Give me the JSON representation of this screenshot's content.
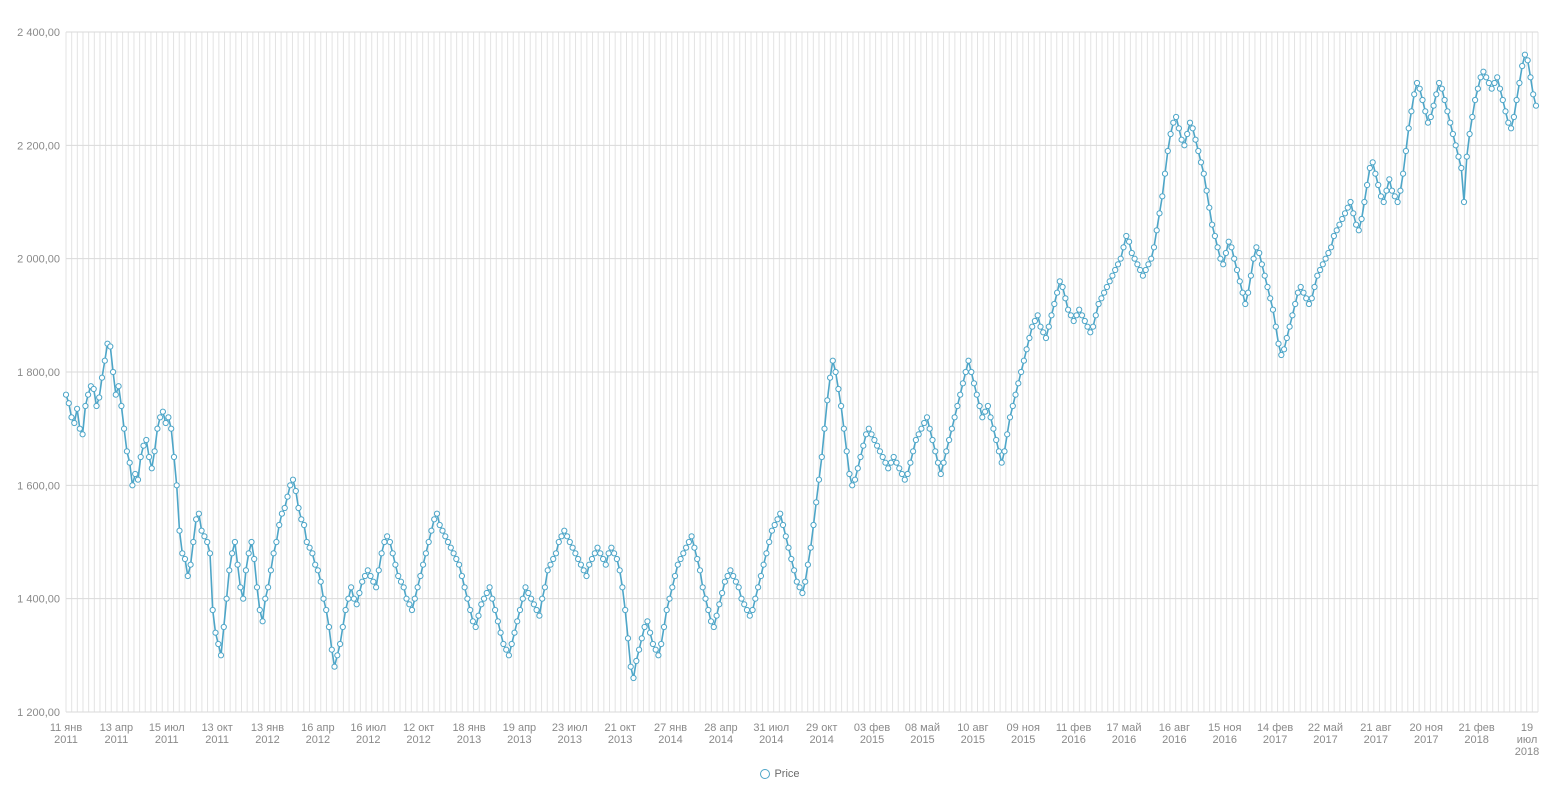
{
  "chart_data": {
    "type": "line",
    "title": "",
    "xlabel": "",
    "ylabel": "",
    "ylim": [
      1200,
      2400
    ],
    "y_ticks": [
      "1 200,00",
      "1 400,00",
      "1 600,00",
      "1 800,00",
      "2 000,00",
      "2 200,00",
      "2 400,00"
    ],
    "y_tick_values": [
      1200,
      1400,
      1600,
      1800,
      2000,
      2200,
      2400
    ],
    "x_tick_labels": [
      [
        "11 янв",
        "2011"
      ],
      [
        "13 апр",
        "2011"
      ],
      [
        "15 июл",
        "2011"
      ],
      [
        "13 окт",
        "2011"
      ],
      [
        "13 янв",
        "2012"
      ],
      [
        "16 апр",
        "2012"
      ],
      [
        "16 июл",
        "2012"
      ],
      [
        "12 окт",
        "2012"
      ],
      [
        "18 янв",
        "2013"
      ],
      [
        "19 апр",
        "2013"
      ],
      [
        "23 июл",
        "2013"
      ],
      [
        "21 окт",
        "2013"
      ],
      [
        "27 янв",
        "2014"
      ],
      [
        "28 апр",
        "2014"
      ],
      [
        "31 июл",
        "2014"
      ],
      [
        "29 окт",
        "2014"
      ],
      [
        "03 фев",
        "2015"
      ],
      [
        "08 май",
        "2015"
      ],
      [
        "10 авг",
        "2015"
      ],
      [
        "09 ноя",
        "2015"
      ],
      [
        "11 фев",
        "2016"
      ],
      [
        "17 май",
        "2016"
      ],
      [
        "16 авг",
        "2016"
      ],
      [
        "15 ноя",
        "2016"
      ],
      [
        "14 фев",
        "2017"
      ],
      [
        "22 май",
        "2017"
      ],
      [
        "21 авг",
        "2017"
      ],
      [
        "20 ноя",
        "2017"
      ],
      [
        "21 фев",
        "2018"
      ],
      [
        "19",
        "июл",
        "2018"
      ]
    ],
    "grid": true,
    "legend_position": "bottom-center",
    "colors": {
      "series": "#4ea6c8",
      "grid": "#e3e3e3",
      "axis_text": "#8a8a8a"
    },
    "series": [
      {
        "name": "Price",
        "values": [
          1760,
          1745,
          1720,
          1710,
          1735,
          1700,
          1690,
          1740,
          1760,
          1775,
          1770,
          1740,
          1755,
          1790,
          1820,
          1850,
          1845,
          1800,
          1760,
          1775,
          1740,
          1700,
          1660,
          1640,
          1600,
          1620,
          1610,
          1650,
          1670,
          1680,
          1650,
          1630,
          1660,
          1700,
          1720,
          1730,
          1710,
          1720,
          1700,
          1650,
          1600,
          1520,
          1480,
          1470,
          1440,
          1460,
          1500,
          1540,
          1550,
          1520,
          1510,
          1500,
          1480,
          1380,
          1340,
          1320,
          1300,
          1350,
          1400,
          1450,
          1480,
          1500,
          1460,
          1420,
          1400,
          1450,
          1480,
          1500,
          1470,
          1420,
          1380,
          1360,
          1400,
          1420,
          1450,
          1480,
          1500,
          1530,
          1550,
          1560,
          1580,
          1600,
          1610,
          1590,
          1560,
          1540,
          1530,
          1500,
          1490,
          1480,
          1460,
          1450,
          1430,
          1400,
          1380,
          1350,
          1310,
          1280,
          1300,
          1320,
          1350,
          1380,
          1400,
          1420,
          1400,
          1390,
          1410,
          1430,
          1440,
          1450,
          1440,
          1430,
          1420,
          1450,
          1480,
          1500,
          1510,
          1500,
          1480,
          1460,
          1440,
          1430,
          1420,
          1400,
          1390,
          1380,
          1400,
          1420,
          1440,
          1460,
          1480,
          1500,
          1520,
          1540,
          1550,
          1530,
          1520,
          1510,
          1500,
          1490,
          1480,
          1470,
          1460,
          1440,
          1420,
          1400,
          1380,
          1360,
          1350,
          1370,
          1390,
          1400,
          1410,
          1420,
          1400,
          1380,
          1360,
          1340,
          1320,
          1310,
          1300,
          1320,
          1340,
          1360,
          1380,
          1400,
          1420,
          1410,
          1400,
          1390,
          1380,
          1370,
          1400,
          1420,
          1450,
          1460,
          1470,
          1480,
          1500,
          1510,
          1520,
          1510,
          1500,
          1490,
          1480,
          1470,
          1460,
          1450,
          1440,
          1460,
          1470,
          1480,
          1490,
          1480,
          1470,
          1460,
          1480,
          1490,
          1480,
          1470,
          1450,
          1420,
          1380,
          1330,
          1280,
          1260,
          1290,
          1310,
          1330,
          1350,
          1360,
          1340,
          1320,
          1310,
          1300,
          1320,
          1350,
          1380,
          1400,
          1420,
          1440,
          1460,
          1470,
          1480,
          1490,
          1500,
          1510,
          1490,
          1470,
          1450,
          1420,
          1400,
          1380,
          1360,
          1350,
          1370,
          1390,
          1410,
          1430,
          1440,
          1450,
          1440,
          1430,
          1420,
          1400,
          1390,
          1380,
          1370,
          1380,
          1400,
          1420,
          1440,
          1460,
          1480,
          1500,
          1520,
          1530,
          1540,
          1550,
          1530,
          1510,
          1490,
          1470,
          1450,
          1430,
          1420,
          1410,
          1430,
          1460,
          1490,
          1530,
          1570,
          1610,
          1650,
          1700,
          1750,
          1790,
          1820,
          1800,
          1770,
          1740,
          1700,
          1660,
          1620,
          1600,
          1610,
          1630,
          1650,
          1670,
          1690,
          1700,
          1690,
          1680,
          1670,
          1660,
          1650,
          1640,
          1630,
          1640,
          1650,
          1640,
          1630,
          1620,
          1610,
          1620,
          1640,
          1660,
          1680,
          1690,
          1700,
          1710,
          1720,
          1700,
          1680,
          1660,
          1640,
          1620,
          1640,
          1660,
          1680,
          1700,
          1720,
          1740,
          1760,
          1780,
          1800,
          1820,
          1800,
          1780,
          1760,
          1740,
          1720,
          1730,
          1740,
          1720,
          1700,
          1680,
          1660,
          1640,
          1660,
          1690,
          1720,
          1740,
          1760,
          1780,
          1800,
          1820,
          1840,
          1860,
          1880,
          1890,
          1900,
          1880,
          1870,
          1860,
          1880,
          1900,
          1920,
          1940,
          1960,
          1950,
          1930,
          1910,
          1900,
          1890,
          1900,
          1910,
          1900,
          1890,
          1880,
          1870,
          1880,
          1900,
          1920,
          1930,
          1940,
          1950,
          1960,
          1970,
          1980,
          1990,
          2000,
          2020,
          2040,
          2030,
          2010,
          2000,
          1990,
          1980,
          1970,
          1980,
          1990,
          2000,
          2020,
          2050,
          2080,
          2110,
          2150,
          2190,
          2220,
          2240,
          2250,
          2230,
          2210,
          2200,
          2220,
          2240,
          2230,
          2210,
          2190,
          2170,
          2150,
          2120,
          2090,
          2060,
          2040,
          2020,
          2000,
          1990,
          2010,
          2030,
          2020,
          2000,
          1980,
          1960,
          1940,
          1920,
          1940,
          1970,
          2000,
          2020,
          2010,
          1990,
          1970,
          1950,
          1930,
          1910,
          1880,
          1850,
          1830,
          1840,
          1860,
          1880,
          1900,
          1920,
          1940,
          1950,
          1940,
          1930,
          1920,
          1930,
          1950,
          1970,
          1980,
          1990,
          2000,
          2010,
          2020,
          2040,
          2050,
          2060,
          2070,
          2080,
          2090,
          2100,
          2080,
          2060,
          2050,
          2070,
          2100,
          2130,
          2160,
          2170,
          2150,
          2130,
          2110,
          2100,
          2120,
          2140,
          2120,
          2110,
          2100,
          2120,
          2150,
          2190,
          2230,
          2260,
          2290,
          2310,
          2300,
          2280,
          2260,
          2240,
          2250,
          2270,
          2290,
          2310,
          2300,
          2280,
          2260,
          2240,
          2220,
          2200,
          2180,
          2160,
          2100,
          2180,
          2220,
          2250,
          2280,
          2300,
          2320,
          2330,
          2320,
          2310,
          2300,
          2310,
          2320,
          2300,
          2280,
          2260,
          2240,
          2230,
          2250,
          2280,
          2310,
          2340,
          2360,
          2350,
          2320,
          2290,
          2270
        ]
      }
    ]
  }
}
